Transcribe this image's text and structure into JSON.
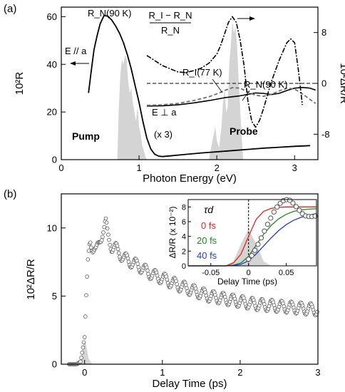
{
  "chart_data": [
    {
      "type": "line",
      "panel_label": "(a)",
      "xlabel": "Photon Energy (eV)",
      "ylabel_left": "10²R",
      "ylabel_right": "10²ΔR/R",
      "xlim": [
        0,
        3.3
      ],
      "ylim_left": [
        0,
        64
      ],
      "ylim_right": [
        -12,
        12
      ],
      "xticks": [
        0,
        1,
        2,
        3
      ],
      "yticks_left": [
        0,
        20,
        40,
        60
      ],
      "yticks_right": [
        -8,
        0,
        8
      ],
      "annotations": {
        "rn90_top": "R_N(90 K)",
        "e_para": "E // a",
        "ratio_num": "R_I − R_N",
        "ratio_den": "R_N",
        "ri77": "R_I(77 K)",
        "rn90_mid": "R_N(90 K)",
        "e_perp": "E ⊥ a",
        "times3": "(x 3)",
        "pump": "Pump",
        "probe": "Probe"
      },
      "series": [
        {
          "name": "R_N(90 K), E // a",
          "axis": "left",
          "x": [
            0.35,
            0.38,
            0.42,
            0.46,
            0.5,
            0.55,
            0.6,
            0.65,
            0.7,
            0.75,
            0.8,
            0.85,
            0.9,
            0.95,
            1.0,
            1.05,
            1.1,
            1.15,
            1.2,
            1.25,
            1.3,
            1.4,
            1.6,
            1.8,
            2.0,
            2.2,
            2.4,
            2.6,
            2.8,
            3.0,
            3.2
          ],
          "y": [
            28,
            36,
            46,
            52,
            57,
            60.5,
            60.2,
            58.5,
            56,
            53,
            49,
            44,
            38,
            31,
            24,
            16,
            9,
            4.5,
            2.3,
            1.5,
            1.3,
            1.6,
            2.2,
            2.8,
            3.3,
            3.8,
            4.3,
            4.8,
            5.2,
            5.6,
            5.9
          ]
        },
        {
          "name": "R_N(90 K), E ⊥ a (x 3)",
          "axis": "left",
          "x": [
            1.1,
            1.3,
            1.5,
            1.7,
            1.9,
            2.1,
            2.3,
            2.4,
            2.5,
            2.6,
            2.7,
            2.8,
            2.9,
            3.0,
            3.1,
            3.2,
            3.27
          ],
          "y": [
            22.5,
            22.6,
            23.0,
            23.8,
            24.8,
            26.0,
            26.8,
            27.4,
            28.0,
            27.8,
            27.3,
            27.8,
            29.0,
            30.0,
            30.3,
            30.0,
            29.2
          ]
        },
        {
          "name": "R_I(77 K), E ⊥ a (x 3)",
          "axis": "left",
          "x": [
            1.1,
            1.3,
            1.5,
            1.7,
            1.9,
            2.0,
            2.1,
            2.2,
            2.3,
            2.4,
            2.5,
            2.6,
            2.7,
            2.8,
            2.9,
            3.0,
            3.1,
            3.2,
            3.27
          ],
          "y": [
            22.8,
            23.0,
            23.6,
            24.8,
            26.4,
            27.6,
            29.0,
            30.2,
            30.0,
            28.4,
            27.0,
            26.6,
            27.4,
            28.8,
            30.0,
            29.6,
            27.6,
            25.2,
            23.6
          ]
        },
        {
          "name": "(R_I − R_N)/R_N",
          "axis": "right",
          "x": [
            1.1,
            1.2,
            1.3,
            1.4,
            1.5,
            1.6,
            1.7,
            1.8,
            1.9,
            2.0,
            2.05,
            2.1,
            2.15,
            2.2,
            2.25,
            2.3,
            2.35,
            2.4,
            2.45,
            2.5,
            2.55,
            2.6,
            2.7,
            2.8,
            2.9,
            2.95,
            3.0,
            3.05,
            3.1
          ],
          "y": [
            4.4,
            3.6,
            2.8,
            2.3,
            1.8,
            1.7,
            2.0,
            2.4,
            3.2,
            4.6,
            6.0,
            7.8,
            9.6,
            10.5,
            9.6,
            6.8,
            2.8,
            -2.8,
            -6.0,
            -6.9,
            -5.8,
            -4.0,
            0.2,
            3.6,
            6.4,
            7.0,
            6.4,
            2.0,
            -3.4
          ]
        },
        {
          "name": "Pump",
          "axis": "left",
          "x": [
            0.72,
            0.74,
            0.76,
            0.78,
            0.8,
            0.82,
            0.84,
            0.86,
            0.88,
            0.9,
            0.92,
            0.94,
            0.96,
            0.98,
            1.0,
            1.02,
            1.04,
            1.06,
            1.08,
            1.1
          ],
          "y": [
            0,
            22,
            36,
            42,
            40,
            44,
            42,
            33,
            28,
            30,
            24,
            20,
            16,
            22,
            14,
            11,
            6,
            4,
            1.5,
            0
          ]
        },
        {
          "name": "Probe",
          "axis": "left",
          "x": [
            1.9,
            1.92,
            1.95,
            1.98,
            2.0,
            2.03,
            2.06,
            2.08,
            2.1,
            2.12,
            2.14,
            2.16,
            2.18,
            2.2,
            2.22,
            2.24,
            2.26,
            2.28,
            2.3,
            2.32,
            2.34
          ],
          "y": [
            0,
            4,
            9,
            14,
            8,
            5,
            14,
            24,
            30,
            20,
            22,
            40,
            48,
            58,
            53,
            56,
            48,
            34,
            22,
            9,
            0
          ]
        }
      ]
    },
    {
      "type": "scatter",
      "panel_label": "(b)",
      "xlabel": "Delay Time (ps)",
      "ylabel": "10²ΔR/R",
      "xlim": [
        -0.3,
        3
      ],
      "ylim": [
        0,
        12.5
      ],
      "xticks": [
        0,
        1,
        2,
        3
      ],
      "yticks": [
        0,
        5,
        10
      ],
      "series": [
        {
          "name": "ΔR/R",
          "x": [
            -0.2,
            -0.1,
            -0.05,
            0.0,
            0.02,
            0.04,
            0.06,
            0.08,
            0.1,
            0.15,
            0.2,
            0.25,
            0.27,
            0.3,
            0.35,
            0.4,
            0.5,
            0.6,
            0.7,
            0.8,
            0.9,
            1.0,
            1.2,
            1.4,
            1.6,
            1.8,
            2.0,
            2.2,
            2.4,
            2.6,
            2.8,
            3.0
          ],
          "y": [
            0,
            0,
            0.2,
            2.0,
            5.0,
            7.6,
            8.8,
            9.0,
            8.6,
            8.2,
            9.2,
            10.0,
            10.4,
            9.4,
            8.6,
            8.5,
            7.8,
            7.5,
            7.2,
            6.8,
            6.5,
            6.3,
            5.8,
            5.4,
            5.0,
            4.8,
            4.6,
            4.4,
            4.3,
            4.2,
            4.1,
            4.0
          ]
        },
        {
          "name": "Pump autocorrelation",
          "x": [
            -0.1,
            -0.05,
            -0.02,
            0.0,
            0.02,
            0.05,
            0.1
          ],
          "y": [
            0,
            0.4,
            1.4,
            1.8,
            1.4,
            0.4,
            0
          ]
        }
      ],
      "inset": {
        "xlabel": "Delay Time (ps)",
        "ylabel": "ΔR/R (x 10⁻²)",
        "legend_title": "τd",
        "xlim": [
          -0.08,
          0.09
        ],
        "ylim": [
          0,
          9
        ],
        "xticks": [
          -0.05,
          0,
          0.05
        ],
        "yticks": [
          0,
          2,
          4,
          6,
          8
        ],
        "series": [
          {
            "name": "0 fs",
            "color": "#e8231c",
            "x": [
              -0.03,
              -0.02,
              -0.01,
              0.0,
              0.01,
              0.02,
              0.03,
              0.04,
              0.05,
              0.06,
              0.07,
              0.08,
              0.09
            ],
            "y": [
              0,
              0.4,
              1.6,
              4.0,
              6.3,
              7.4,
              7.8,
              7.95,
              8.0,
              8.0,
              8.0,
              8.0,
              8.0
            ]
          },
          {
            "name": "20 fs",
            "color": "#1a8a1a",
            "x": [
              -0.03,
              -0.02,
              -0.01,
              0.0,
              0.01,
              0.02,
              0.03,
              0.04,
              0.05,
              0.06,
              0.07,
              0.08,
              0.09
            ],
            "y": [
              0,
              0.1,
              0.4,
              1.3,
              2.8,
              4.3,
              5.5,
              6.4,
              7.0,
              7.4,
              7.6,
              7.7,
              7.75
            ]
          },
          {
            "name": "40 fs",
            "color": "#1f3fd6",
            "x": [
              -0.03,
              -0.02,
              -0.01,
              0.0,
              0.01,
              0.02,
              0.03,
              0.04,
              0.05,
              0.06,
              0.07,
              0.08,
              0.09
            ],
            "y": [
              0,
              0.05,
              0.2,
              0.7,
              1.6,
              2.7,
              3.8,
              4.8,
              5.6,
              6.2,
              6.6,
              6.9,
              7.1
            ]
          },
          {
            "name": "Measured",
            "x": [
              -0.08,
              -0.06,
              -0.04,
              -0.03,
              -0.02,
              -0.01,
              0.0,
              0.005,
              0.01,
              0.015,
              0.02,
              0.025,
              0.03,
              0.035,
              0.04,
              0.045,
              0.05,
              0.055,
              0.06,
              0.065,
              0.07,
              0.075,
              0.08,
              0.085,
              0.09
            ],
            "y": [
              0,
              0,
              0,
              0,
              0.05,
              0.3,
              0.9,
              1.5,
              2.4,
              3.4,
              4.5,
              5.6,
              6.6,
              7.6,
              8.3,
              8.8,
              9.0,
              8.9,
              8.4,
              7.8,
              7.2,
              6.8,
              6.7,
              6.7,
              6.8
            ]
          },
          {
            "name": "Pump autocorrelation",
            "x": [
              -0.03,
              -0.02,
              -0.01,
              0.0,
              0.01,
              0.02,
              0.03
            ],
            "y": [
              0,
              0.6,
              3.0,
              5.0,
              3.0,
              0.6,
              0
            ]
          }
        ]
      }
    }
  ]
}
